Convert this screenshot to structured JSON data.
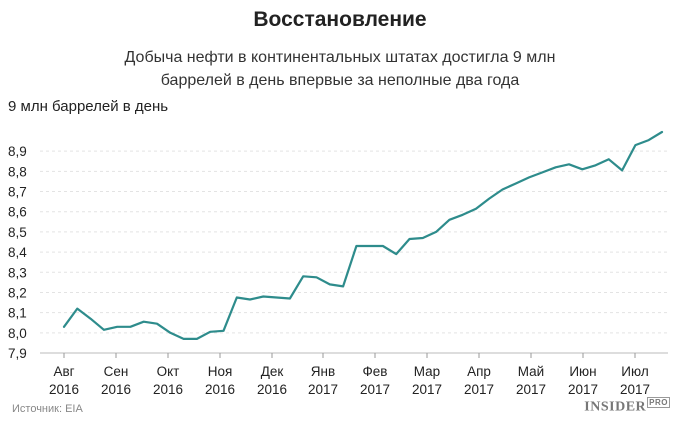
{
  "chart_data": {
    "type": "line",
    "title": "Восстановление",
    "subtitle_line1": "Добыча нефти в континентальных штатах достигла 9 млн",
    "subtitle_line2": "баррелей в день впервые за неполные два года",
    "ylabel": "9 млн баррелей в день",
    "ylim": [
      7.9,
      9.0
    ],
    "y_ticks": [
      "7,9",
      "8,0",
      "8,1",
      "8,2",
      "8,3",
      "8,4",
      "8,5",
      "8,6",
      "8,7",
      "8,8",
      "8,9"
    ],
    "x_ticks": [
      {
        "month": "Авг",
        "year": "2016"
      },
      {
        "month": "Сен",
        "year": "2016"
      },
      {
        "month": "Окт",
        "year": "2016"
      },
      {
        "month": "Ноя",
        "year": "2016"
      },
      {
        "month": "Дек",
        "year": "2016"
      },
      {
        "month": "Янв",
        "year": "2017"
      },
      {
        "month": "Фев",
        "year": "2017"
      },
      {
        "month": "Мар",
        "year": "2017"
      },
      {
        "month": "Апр",
        "year": "2017"
      },
      {
        "month": "Май",
        "year": "2017"
      },
      {
        "month": "Июн",
        "year": "2017"
      },
      {
        "month": "Июл",
        "year": "2017"
      }
    ],
    "series": [
      {
        "color": "#2e8c8c",
        "values": [
          8.03,
          8.12,
          8.07,
          8.015,
          8.03,
          8.03,
          8.055,
          8.045,
          8.0,
          7.97,
          7.97,
          8.005,
          8.01,
          8.175,
          8.165,
          8.18,
          8.175,
          8.17,
          8.28,
          8.275,
          8.24,
          8.23,
          8.43,
          8.43,
          8.43,
          8.39,
          8.465,
          8.47,
          8.5,
          8.56,
          8.585,
          8.615,
          8.665,
          8.71,
          8.74,
          8.77,
          8.795,
          8.82,
          8.835,
          8.81,
          8.83,
          8.86,
          8.805,
          8.93,
          8.955,
          8.995
        ]
      }
    ]
  },
  "footer": {
    "source": "Источник: EIA",
    "logo": "INSIDER",
    "logo_suffix": "PRO"
  }
}
